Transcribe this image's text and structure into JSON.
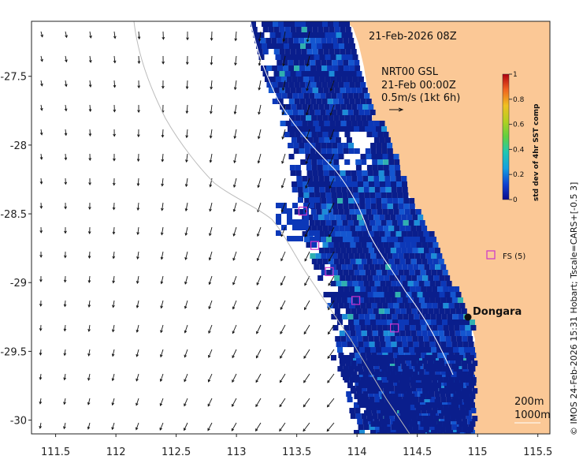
{
  "map": {
    "timestamp": "21-Feb-2026 08Z",
    "current_title": "NRT00 GSL",
    "current_time": "21-Feb 00:00Z",
    "current_scale": "0.5m/s (1kt 6h)",
    "credit": "© IMOS 24-Feb-2026 15:31 Hobart; Tscale=CARS+[-0.5 3]",
    "lon_range": [
      111.3,
      115.6
    ],
    "lat_range": [
      -30.1,
      -27.1
    ],
    "x_ticks": [
      "111.5",
      "112",
      "112.5",
      "113",
      "113.5",
      "114",
      "114.5",
      "115",
      "115.5"
    ],
    "x_tick_values": [
      111.5,
      112,
      112.5,
      113,
      113.5,
      114,
      114.5,
      115,
      115.5
    ],
    "y_ticks": [
      "-27.5",
      "-28",
      "-28.5",
      "-29",
      "-29.5",
      "-30"
    ],
    "y_tick_values": [
      -27.5,
      -28,
      -28.5,
      -29,
      -29.5,
      -30
    ],
    "colorbar": {
      "title": "std dev of 4hr SST comp",
      "ticks": [
        "1",
        "0.8",
        "0.6",
        "0.4",
        "0.2",
        "0"
      ],
      "range": [
        0,
        1
      ]
    },
    "contours": {
      "c200": "200m",
      "c1000": "1000m"
    },
    "town": {
      "name": "Dongara",
      "lon": 114.93,
      "lat": -29.25
    },
    "station": {
      "label": "FS (5)",
      "lon": 115.1,
      "lat": -28.8
    },
    "colors": {
      "land": "#fbc896",
      "ocean": "#ffffff",
      "marker": "#cc33cc",
      "data_dark": "#0a1e8c"
    },
    "markers": [
      {
        "lon": 113.55,
        "lat": -28.48
      },
      {
        "lon": 113.65,
        "lat": -28.73
      },
      {
        "lon": 113.77,
        "lat": -28.92
      },
      {
        "lon": 113.99,
        "lat": -29.13
      },
      {
        "lon": 114.31,
        "lat": -29.33
      }
    ]
  }
}
